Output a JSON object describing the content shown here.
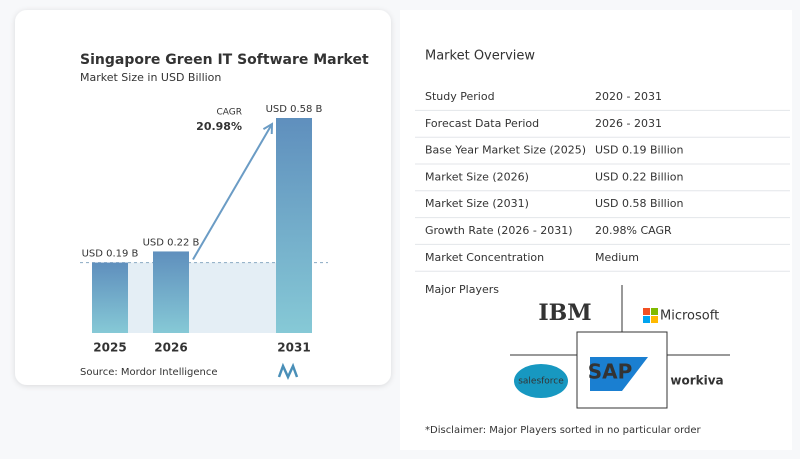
{
  "chart_data": {
    "type": "bar",
    "title": "Singapore Green IT Software Market",
    "subtitle": "Market Size in USD Billion",
    "categories": [
      "2025",
      "2026",
      "2031"
    ],
    "values": [
      0.19,
      0.22,
      0.58
    ],
    "value_labels": [
      "USD 0.19 B",
      "USD 0.22 B",
      "USD 0.58 B"
    ],
    "annotation": {
      "label": "CAGR",
      "value": "20.98%"
    },
    "source": "Source: Mordor Intelligence"
  },
  "overview": {
    "title": "Market Overview",
    "rows": [
      [
        "Study Period",
        "2020 - 2031"
      ],
      [
        "Forecast Data Period",
        "2026 - 2031"
      ],
      [
        "Base Year Market Size (2025)",
        "USD 0.19 Billion"
      ],
      [
        "Market Size (2026)",
        "USD 0.22 Billion"
      ],
      [
        "Market Size (2031)",
        "USD 0.58 Billion"
      ],
      [
        "Growth Rate (2026 - 2031)",
        "20.98% CAGR"
      ],
      [
        "Market Concentration",
        "Medium"
      ]
    ]
  },
  "players": {
    "title": "Major Players",
    "names": [
      "IBM",
      "Microsoft",
      "salesforce",
      "SAP",
      "workiva"
    ]
  },
  "disclaimer": "*Disclaimer: Major Players sorted in no particular order"
}
